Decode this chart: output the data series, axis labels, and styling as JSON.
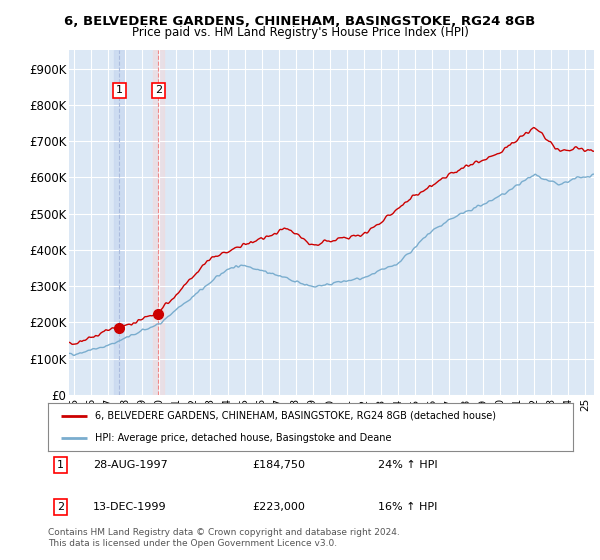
{
  "title1": "6, BELVEDERE GARDENS, CHINEHAM, BASINGSTOKE, RG24 8GB",
  "title2": "Price paid vs. HM Land Registry's House Price Index (HPI)",
  "ylabel_ticks": [
    "£0",
    "£100K",
    "£200K",
    "£300K",
    "£400K",
    "£500K",
    "£600K",
    "£700K",
    "£800K",
    "£900K"
  ],
  "ytick_vals": [
    0,
    100000,
    200000,
    300000,
    400000,
    500000,
    600000,
    700000,
    800000,
    900000
  ],
  "ylim": [
    0,
    950000
  ],
  "xlim_start": 1994.7,
  "xlim_end": 2025.5,
  "legend_line1": "6, BELVEDERE GARDENS, CHINEHAM, BASINGSTOKE, RG24 8GB (detached house)",
  "legend_line2": "HPI: Average price, detached house, Basingstoke and Deane",
  "sale1_date": "28-AUG-1997",
  "sale1_price": "£184,750",
  "sale1_hpi": "24% ↑ HPI",
  "sale1_year": 1997.65,
  "sale1_value": 184750,
  "sale2_date": "13-DEC-1999",
  "sale2_price": "£223,000",
  "sale2_hpi": "16% ↑ HPI",
  "sale2_year": 1999.95,
  "sale2_value": 223000,
  "footnote": "Contains HM Land Registry data © Crown copyright and database right 2024.\nThis data is licensed under the Open Government Licence v3.0.",
  "red_color": "#cc0000",
  "blue_color": "#7aadce",
  "bg_color": "#dce8f5",
  "plot_bg": "#ffffff",
  "sale1_vline_color": "#aabbdd",
  "sale2_vline_color": "#ee8888",
  "grid_color": "#c8d8e8",
  "label_box_color": "red"
}
